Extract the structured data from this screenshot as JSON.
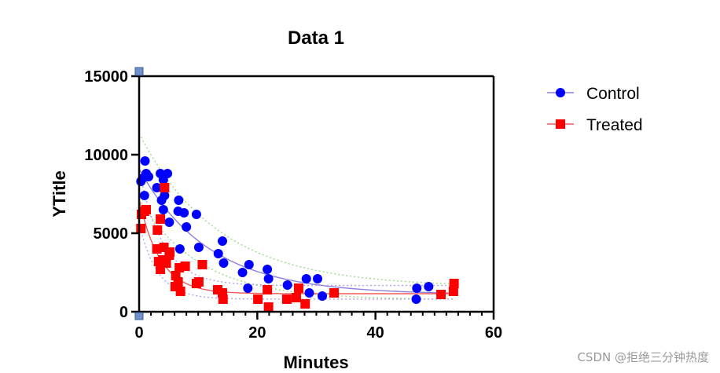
{
  "chart_data": {
    "type": "scatter",
    "title": "Data 1",
    "xlabel": "Minutes",
    "ylabel": "YTitle",
    "xlim": [
      0,
      60
    ],
    "ylim": [
      0,
      15000
    ],
    "x_ticks": [
      0,
      20,
      40,
      60
    ],
    "y_ticks": [
      0,
      5000,
      10000,
      15000
    ],
    "x_tick_labels": [
      "0",
      "20",
      "40",
      "60"
    ],
    "y_tick_labels": [
      "0",
      "5000",
      "10000",
      "15000"
    ],
    "grid": false,
    "legend_position": "right",
    "series": [
      {
        "name": "Control",
        "marker": "circle",
        "color": "#0000ff",
        "fit_color": "#8c7fe0",
        "band_color": "#9bdc8c",
        "fit": {
          "plateau": 1100,
          "span": 8000,
          "k": 0.085
        },
        "points": [
          [
            0.3,
            8300
          ],
          [
            0.6,
            8500
          ],
          [
            0.9,
            7400
          ],
          [
            1.0,
            9600
          ],
          [
            1.2,
            8800
          ],
          [
            1.6,
            8600
          ],
          [
            3.0,
            7900
          ],
          [
            3.6,
            8800
          ],
          [
            3.8,
            7100
          ],
          [
            4.1,
            8400
          ],
          [
            4.1,
            6500
          ],
          [
            4.3,
            7400
          ],
          [
            4.8,
            8800
          ],
          [
            5.1,
            5700
          ],
          [
            6.6,
            6400
          ],
          [
            6.7,
            7100
          ],
          [
            6.9,
            4000
          ],
          [
            7.6,
            6300
          ],
          [
            8.0,
            5400
          ],
          [
            9.7,
            6200
          ],
          [
            10.1,
            4100
          ],
          [
            13.4,
            3700
          ],
          [
            14.1,
            4500
          ],
          [
            14.3,
            3100
          ],
          [
            17.5,
            2500
          ],
          [
            18.4,
            1500
          ],
          [
            18.6,
            3000
          ],
          [
            21.7,
            2700
          ],
          [
            21.9,
            2100
          ],
          [
            25.1,
            1700
          ],
          [
            28.3,
            2100
          ],
          [
            28.8,
            1200
          ],
          [
            30.2,
            2100
          ],
          [
            31.0,
            1000
          ],
          [
            46.9,
            800
          ],
          [
            47.0,
            1500
          ],
          [
            49.0,
            1600
          ]
        ]
      },
      {
        "name": "Treated",
        "marker": "square",
        "color": "#ff0000",
        "fit_color": "#f05a5a",
        "band_color": "#b8a0ea",
        "fit": {
          "plateau": 1150,
          "span": 6000,
          "k": 0.28
        },
        "points": [
          [
            0.3,
            5300
          ],
          [
            0.4,
            6200
          ],
          [
            0.9,
            6400
          ],
          [
            1.2,
            6500
          ],
          [
            3.0,
            4000
          ],
          [
            3.1,
            5200
          ],
          [
            3.3,
            3200
          ],
          [
            3.6,
            2700
          ],
          [
            3.6,
            5900
          ],
          [
            4.0,
            3300
          ],
          [
            4.2,
            4100
          ],
          [
            4.3,
            7900
          ],
          [
            4.6,
            3100
          ],
          [
            5.1,
            3600
          ],
          [
            5.2,
            3800
          ],
          [
            6.1,
            1600
          ],
          [
            6.2,
            2300
          ],
          [
            6.6,
            1900
          ],
          [
            6.8,
            2800
          ],
          [
            7.0,
            1300
          ],
          [
            7.8,
            2900
          ],
          [
            9.7,
            1800
          ],
          [
            10.1,
            1900
          ],
          [
            10.7,
            3000
          ],
          [
            13.3,
            1400
          ],
          [
            14.1,
            1200
          ],
          [
            14.2,
            800
          ],
          [
            20.1,
            800
          ],
          [
            21.7,
            1400
          ],
          [
            21.9,
            300
          ],
          [
            25.0,
            800
          ],
          [
            26.6,
            900
          ],
          [
            27.0,
            1500
          ],
          [
            28.1,
            500
          ],
          [
            33.0,
            1200
          ],
          [
            51.1,
            1100
          ],
          [
            53.2,
            1300
          ],
          [
            53.3,
            1800
          ]
        ]
      }
    ]
  },
  "watermark": "CSDN @拒绝三分钟热度"
}
